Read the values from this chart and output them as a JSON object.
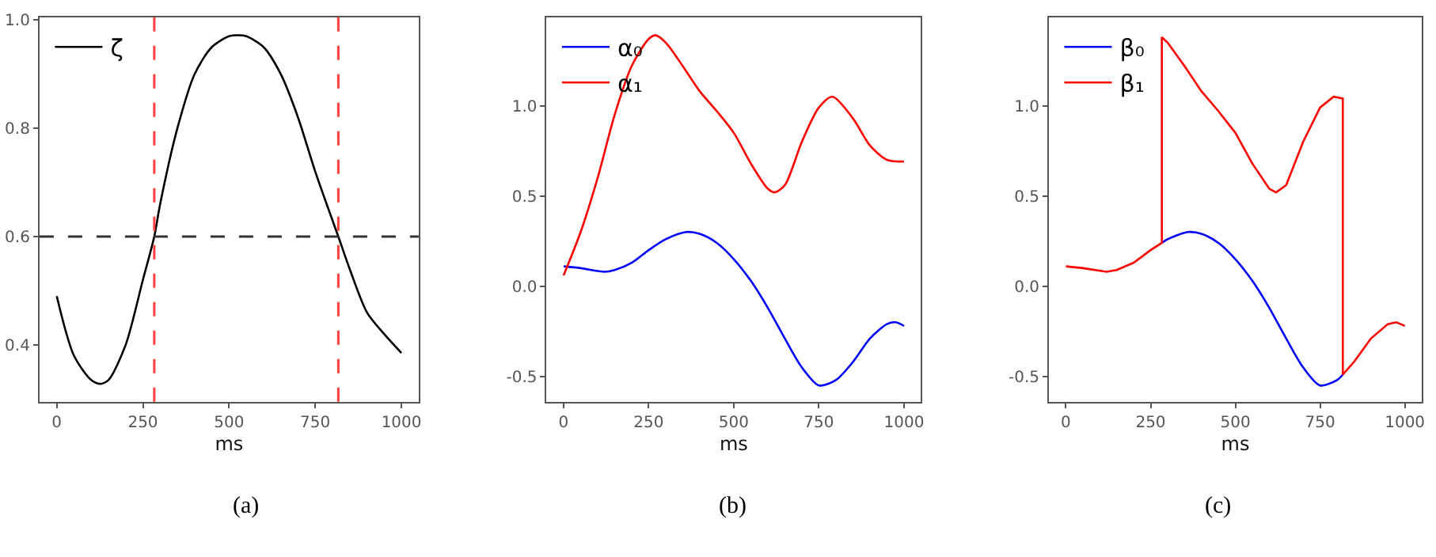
{
  "chart_data": [
    {
      "type": "line",
      "xlabel": "ms",
      "xlim": [
        -50,
        1050
      ],
      "ylim": [
        0.295,
        1.005
      ],
      "xticks": [
        0,
        250,
        500,
        750,
        1000
      ],
      "yticks": [
        {
          "value": 0.4,
          "label": "0.4"
        },
        {
          "value": 0.6,
          "label": "0.6"
        },
        {
          "value": 0.8,
          "label": "0.8"
        },
        {
          "value": 1.0,
          "label": "1.0"
        }
      ],
      "legend": "top left",
      "annotations": [
        "(a)"
      ],
      "ref_lines": [
        {
          "axis": "x",
          "value": 283,
          "color": "#ff4040",
          "line_style": "dashed"
        },
        {
          "axis": "x",
          "value": 817,
          "color": "#ff4040",
          "line_style": "dashed"
        },
        {
          "axis": "y",
          "value": 0.6,
          "color": "#333333",
          "line_style": "dashed"
        }
      ],
      "series": [
        {
          "name": "ζ",
          "color": "#000000",
          "x": [
            0,
            50,
            100,
            125,
            150,
            200,
            250,
            283,
            300,
            350,
            400,
            450,
            500,
            525,
            550,
            600,
            650,
            700,
            750,
            800,
            817,
            850,
            900,
            950,
            1000
          ],
          "values": [
            0.49,
            0.38,
            0.335,
            0.328,
            0.335,
            0.4,
            0.52,
            0.6,
            0.66,
            0.8,
            0.9,
            0.95,
            0.97,
            0.972,
            0.97,
            0.95,
            0.9,
            0.82,
            0.72,
            0.63,
            0.6,
            0.54,
            0.46,
            0.42,
            0.385
          ]
        }
      ]
    },
    {
      "type": "line",
      "xlabel": "ms",
      "xlim": [
        -50,
        1050
      ],
      "ylim": [
        -0.64,
        1.49
      ],
      "xticks": [
        0,
        250,
        500,
        750,
        1000
      ],
      "yticks": [
        {
          "value": -0.5,
          "label": "-0.5"
        },
        {
          "value": 0,
          "label": "0.0"
        },
        {
          "value": 0.5,
          "label": "0.5"
        },
        {
          "value": 1.0,
          "label": "1.0"
        }
      ],
      "legend": "top left",
      "annotations": [
        "(b)"
      ],
      "series": [
        {
          "name": "α₀",
          "color": "#0000ff",
          "x": [
            0,
            50,
            120,
            150,
            200,
            250,
            300,
            360,
            400,
            450,
            500,
            550,
            600,
            650,
            700,
            750,
            800,
            850,
            900,
            950,
            975,
            1000
          ],
          "values": [
            0.11,
            0.1,
            0.08,
            0.09,
            0.13,
            0.2,
            0.26,
            0.3,
            0.29,
            0.24,
            0.15,
            0.03,
            -0.12,
            -0.29,
            -0.45,
            -0.55,
            -0.52,
            -0.42,
            -0.29,
            -0.21,
            -0.2,
            -0.22
          ]
        },
        {
          "name": "α₁",
          "color": "#ff0000",
          "x": [
            0,
            50,
            100,
            150,
            200,
            250,
            270,
            300,
            350,
            400,
            450,
            500,
            550,
            600,
            620,
            650,
            700,
            750,
            790,
            850,
            900,
            950,
            1000
          ],
          "values": [
            0.06,
            0.3,
            0.6,
            0.95,
            1.22,
            1.37,
            1.39,
            1.35,
            1.22,
            1.08,
            0.97,
            0.85,
            0.68,
            0.54,
            0.52,
            0.56,
            0.8,
            0.99,
            1.05,
            0.93,
            0.78,
            0.7,
            0.69
          ]
        }
      ]
    },
    {
      "type": "line",
      "xlabel": "ms",
      "xlim": [
        -50,
        1050
      ],
      "ylim": [
        -0.64,
        1.49
      ],
      "xticks": [
        0,
        250,
        500,
        750,
        1000
      ],
      "yticks": [
        {
          "value": -0.5,
          "label": "-0.5"
        },
        {
          "value": 0,
          "label": "0.0"
        },
        {
          "value": 0.5,
          "label": "0.5"
        },
        {
          "value": 1.0,
          "label": "1.0"
        }
      ],
      "legend": "top left",
      "annotations": [
        "(c)"
      ],
      "series": [
        {
          "name": "β₀",
          "color": "#0000ff",
          "x": [
            283,
            300,
            360,
            400,
            450,
            500,
            550,
            600,
            650,
            700,
            750,
            800,
            817
          ],
          "values": [
            0.24,
            0.26,
            0.3,
            0.29,
            0.24,
            0.15,
            0.03,
            -0.12,
            -0.29,
            -0.45,
            -0.55,
            -0.52,
            -0.49
          ]
        },
        {
          "name": "β₁",
          "color": "#ff0000",
          "x": [
            0,
            50,
            120,
            150,
            200,
            250,
            283,
            283,
            300,
            350,
            400,
            450,
            500,
            550,
            600,
            620,
            650,
            700,
            750,
            790,
            817,
            817,
            850,
            900,
            950,
            975,
            1000
          ],
          "values": [
            0.11,
            0.1,
            0.08,
            0.09,
            0.13,
            0.2,
            0.24,
            1.38,
            1.35,
            1.22,
            1.08,
            0.97,
            0.85,
            0.68,
            0.54,
            0.52,
            0.56,
            0.8,
            0.99,
            1.05,
            1.04,
            -0.49,
            -0.42,
            -0.29,
            -0.21,
            -0.2,
            -0.22
          ]
        }
      ]
    }
  ]
}
